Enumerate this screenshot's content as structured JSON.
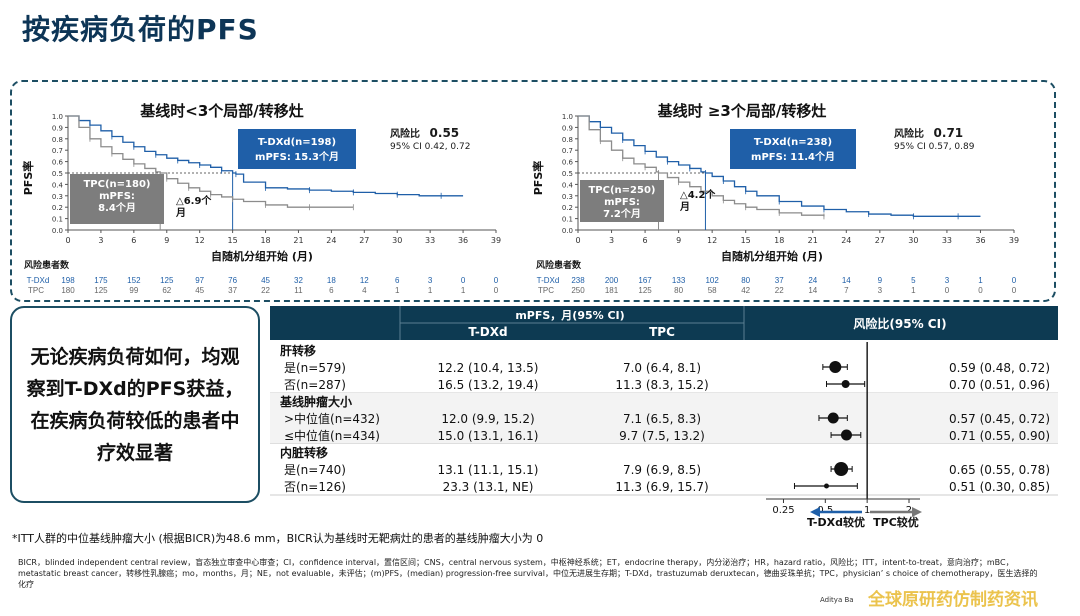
{
  "page_title": "按疾病负荷的PFS",
  "panels": [
    {
      "title": "基线时<3个局部/转移灶",
      "y_axis_label": "PFS率",
      "x_axis_label": "自随机分组开始 (月)",
      "hr_label": "风险比",
      "hr_value": "0.55",
      "ci_text": "95% CI 0.42, 0.72",
      "tdxd_box_line1": "T-DXd(n=198)",
      "tdxd_box_line2": "mPFS: 15.3个月",
      "tpc_box_line1": "TPC(n=180)",
      "tpc_box_line2": "mPFS:",
      "tpc_box_line3": "8.4个月",
      "delta_line1": "△6.9个",
      "delta_line2": "月",
      "risk_title": "风险患者数",
      "tdxd_row_label": "T-DXd",
      "tpc_row_label": "TPC",
      "tdxd_at_risk": [
        "198",
        "175",
        "152",
        "125",
        "97",
        "76",
        "45",
        "32",
        "18",
        "12",
        "6",
        "3",
        "0",
        "0"
      ],
      "tpc_at_risk": [
        "180",
        "125",
        "99",
        "62",
        "45",
        "37",
        "22",
        "11",
        "6",
        "4",
        "1",
        "1",
        "1",
        "0"
      ]
    },
    {
      "title": "基线时 ≥3个局部/转移灶",
      "y_axis_label": "PFS率",
      "x_axis_label": "自随机分组开始 (月)",
      "hr_label": "风险比",
      "hr_value": "0.71",
      "ci_text": "95% CI 0.57, 0.89",
      "tdxd_box_line1": "T-DXd(n=238)",
      "tdxd_box_line2": "mPFS: 11.4个月",
      "tpc_box_line1": "TPC(n=250)",
      "tpc_box_line2": "mPFS:",
      "tpc_box_line3": "7.2个月",
      "delta_line1": "△4.2个",
      "delta_line2": "月",
      "risk_title": "风险患者数",
      "tdxd_row_label": "T-DXd",
      "tpc_row_label": "TPC",
      "tdxd_at_risk": [
        "238",
        "200",
        "167",
        "133",
        "102",
        "80",
        "37",
        "24",
        "14",
        "9",
        "5",
        "3",
        "1",
        "0"
      ],
      "tpc_at_risk": [
        "250",
        "181",
        "125",
        "80",
        "58",
        "42",
        "22",
        "14",
        "7",
        "3",
        "1",
        "0",
        "0",
        "0"
      ]
    }
  ],
  "callout_text": "无论疾病负荷如何，均观察到T-DXd的PFS获益，在疾病负荷较低的患者中疗效显著",
  "forest": {
    "header_mpfs": "mPFS，月(95% CI)",
    "header_tdxd": "T-DXd",
    "header_tpc": "TPC",
    "header_hr": "风险比(95% CI)",
    "legend_left": "T-DXd较优",
    "legend_right": "TPC较优",
    "x_ticks": [
      "0.25",
      "0.5",
      "1",
      "2"
    ]
  },
  "footnote": "*ITT人群的中位基线肿瘤大小 (根据BICR)为48.6 mm，BICR认为基线时无靶病灶的患者的基线肿瘤大小为 0",
  "abbreviations": "BICR，blinded independent central review，盲态独立审查中心审查；CI，confidence interval，置信区间；CNS，central nervous system，中枢神经系统；ET，endocrine therapy，内分泌治疗；HR，hazard ratio，风险比；ITT，intent-to-treat，意向治疗；mBC，metastatic breast cancer，转移性乳腺癌；mo，months，月；NE，not evaluable，未评估；(m)PFS，(median) progression-free survival，中位无进展生存期；T-DXd，trastuzumab deruxtecan，德曲妥珠单抗；TPC，physician’ s choice of chemotherapy，医生选择的化疗",
  "citation": "Aditya Ba",
  "watermark": "全球原研药仿制药资讯",
  "chart_data": [
    {
      "type": "line",
      "title": "基线时<3个局部/转移灶",
      "xlabel": "自随机分组开始 (月)",
      "ylabel": "PFS率",
      "xlim": [
        0,
        39
      ],
      "ylim": [
        0,
        1.0
      ],
      "x_ticks": [
        0,
        3,
        6,
        9,
        12,
        15,
        18,
        21,
        24,
        27,
        30,
        33,
        36,
        39
      ],
      "y_ticks": [
        0,
        0.1,
        0.2,
        0.3,
        0.4,
        0.5,
        0.6,
        0.7,
        0.8,
        0.9,
        1.0
      ],
      "series": [
        {
          "name": "T-DXd",
          "color": "#1f5fa8",
          "x": [
            0,
            1,
            2,
            3,
            4,
            5,
            6,
            7,
            8,
            9,
            10,
            11,
            12,
            13,
            14,
            15,
            15.3,
            16,
            18,
            20,
            22,
            24,
            26,
            28,
            30,
            32,
            34,
            36
          ],
          "y": [
            1.0,
            0.96,
            0.92,
            0.87,
            0.82,
            0.77,
            0.73,
            0.69,
            0.66,
            0.63,
            0.61,
            0.59,
            0.57,
            0.55,
            0.52,
            0.5,
            0.49,
            0.42,
            0.37,
            0.36,
            0.35,
            0.34,
            0.33,
            0.32,
            0.31,
            0.3,
            0.3,
            0.3
          ]
        },
        {
          "name": "TPC",
          "color": "#8c8c8c",
          "x": [
            0,
            1,
            2,
            3,
            4,
            5,
            6,
            7,
            8,
            8.4,
            9,
            10,
            11,
            12,
            13,
            14,
            15,
            16,
            18,
            20,
            22,
            24,
            26
          ],
          "y": [
            1.0,
            0.9,
            0.8,
            0.73,
            0.67,
            0.62,
            0.58,
            0.54,
            0.51,
            0.5,
            0.45,
            0.41,
            0.37,
            0.34,
            0.31,
            0.29,
            0.27,
            0.25,
            0.22,
            0.2,
            0.2,
            0.2,
            0.2
          ]
        }
      ]
    },
    {
      "type": "line",
      "title": "基线时 ≥3个局部/转移灶",
      "xlabel": "自随机分组开始 (月)",
      "ylabel": "PFS率",
      "xlim": [
        0,
        39
      ],
      "ylim": [
        0,
        1.0
      ],
      "x_ticks": [
        0,
        3,
        6,
        9,
        12,
        15,
        18,
        21,
        24,
        27,
        30,
        33,
        36,
        39
      ],
      "y_ticks": [
        0,
        0.1,
        0.2,
        0.3,
        0.4,
        0.5,
        0.6,
        0.7,
        0.8,
        0.9,
        1.0
      ],
      "series": [
        {
          "name": "T-DXd",
          "color": "#1f5fa8",
          "x": [
            0,
            1,
            2,
            3,
            4,
            5,
            6,
            7,
            8,
            9,
            10,
            11,
            11.4,
            12,
            13,
            14,
            15,
            16,
            18,
            20,
            22,
            24,
            26,
            28,
            30,
            32,
            34,
            36
          ],
          "y": [
            1.0,
            0.95,
            0.9,
            0.85,
            0.79,
            0.74,
            0.69,
            0.64,
            0.6,
            0.57,
            0.54,
            0.51,
            0.5,
            0.47,
            0.43,
            0.38,
            0.34,
            0.3,
            0.25,
            0.21,
            0.18,
            0.16,
            0.14,
            0.13,
            0.12,
            0.12,
            0.12,
            0.12
          ]
        },
        {
          "name": "TPC",
          "color": "#8c8c8c",
          "x": [
            0,
            1,
            2,
            3,
            4,
            5,
            6,
            7,
            7.2,
            8,
            9,
            10,
            11,
            12,
            13,
            14,
            15,
            16,
            18,
            20,
            22
          ],
          "y": [
            1.0,
            0.88,
            0.78,
            0.7,
            0.63,
            0.58,
            0.55,
            0.51,
            0.5,
            0.46,
            0.42,
            0.38,
            0.34,
            0.3,
            0.26,
            0.23,
            0.2,
            0.18,
            0.15,
            0.13,
            0.12
          ]
        }
      ]
    },
    {
      "type": "table",
      "subtype": "forest",
      "x_scale": "log",
      "xlim": [
        0.2,
        2.4
      ],
      "x_ticks": [
        0.25,
        0.5,
        1,
        2
      ],
      "groups": [
        {
          "label": "肝转移",
          "rows": [
            {
              "label": "是(n=579)",
              "tdxd": "12.2 (10.4, 13.5)",
              "tpc": "7.0 (6.4, 8.1)",
              "hr_text": "0.59 (0.48, 0.72)",
              "hr": 0.59,
              "lo": 0.48,
              "hi": 0.72,
              "size": 6
            },
            {
              "label": "否(n=287)",
              "tdxd": "16.5 (13.2, 19.4)",
              "tpc": "11.3 (8.3, 15.2)",
              "hr_text": "0.70 (0.51, 0.96)",
              "hr": 0.7,
              "lo": 0.51,
              "hi": 0.96,
              "size": 4
            }
          ]
        },
        {
          "label": "基线肿瘤大小",
          "rows": [
            {
              "label": ">中位值(n=432)",
              "tdxd": "12.0 (9.9, 15.2)",
              "tpc": "7.1 (6.5, 8.3)",
              "hr_text": "0.57 (0.45, 0.72)",
              "hr": 0.57,
              "lo": 0.45,
              "hi": 0.72,
              "size": 5.5
            },
            {
              "label": "≤中位值(n=434)",
              "tdxd": "15.0 (13.1, 16.1)",
              "tpc": "9.7 (7.5, 13.2)",
              "hr_text": "0.71 (0.55, 0.90)",
              "hr": 0.71,
              "lo": 0.55,
              "hi": 0.9,
              "size": 5.5
            }
          ]
        },
        {
          "label": "内脏转移",
          "rows": [
            {
              "label": "是(n=740)",
              "tdxd": "13.1 (11.1, 15.1)",
              "tpc": "7.9 (6.9, 8.5)",
              "hr_text": "0.65 (0.55, 0.78)",
              "hr": 0.65,
              "lo": 0.55,
              "hi": 0.78,
              "size": 7
            },
            {
              "label": "否(n=126)",
              "tdxd": "23.3 (13.1, NE)",
              "tpc": "11.3 (6.9, 15.7)",
              "hr_text": "0.51 (0.30, 0.85)",
              "hr": 0.51,
              "lo": 0.3,
              "hi": 0.85,
              "size": 2.5
            }
          ]
        }
      ]
    }
  ]
}
